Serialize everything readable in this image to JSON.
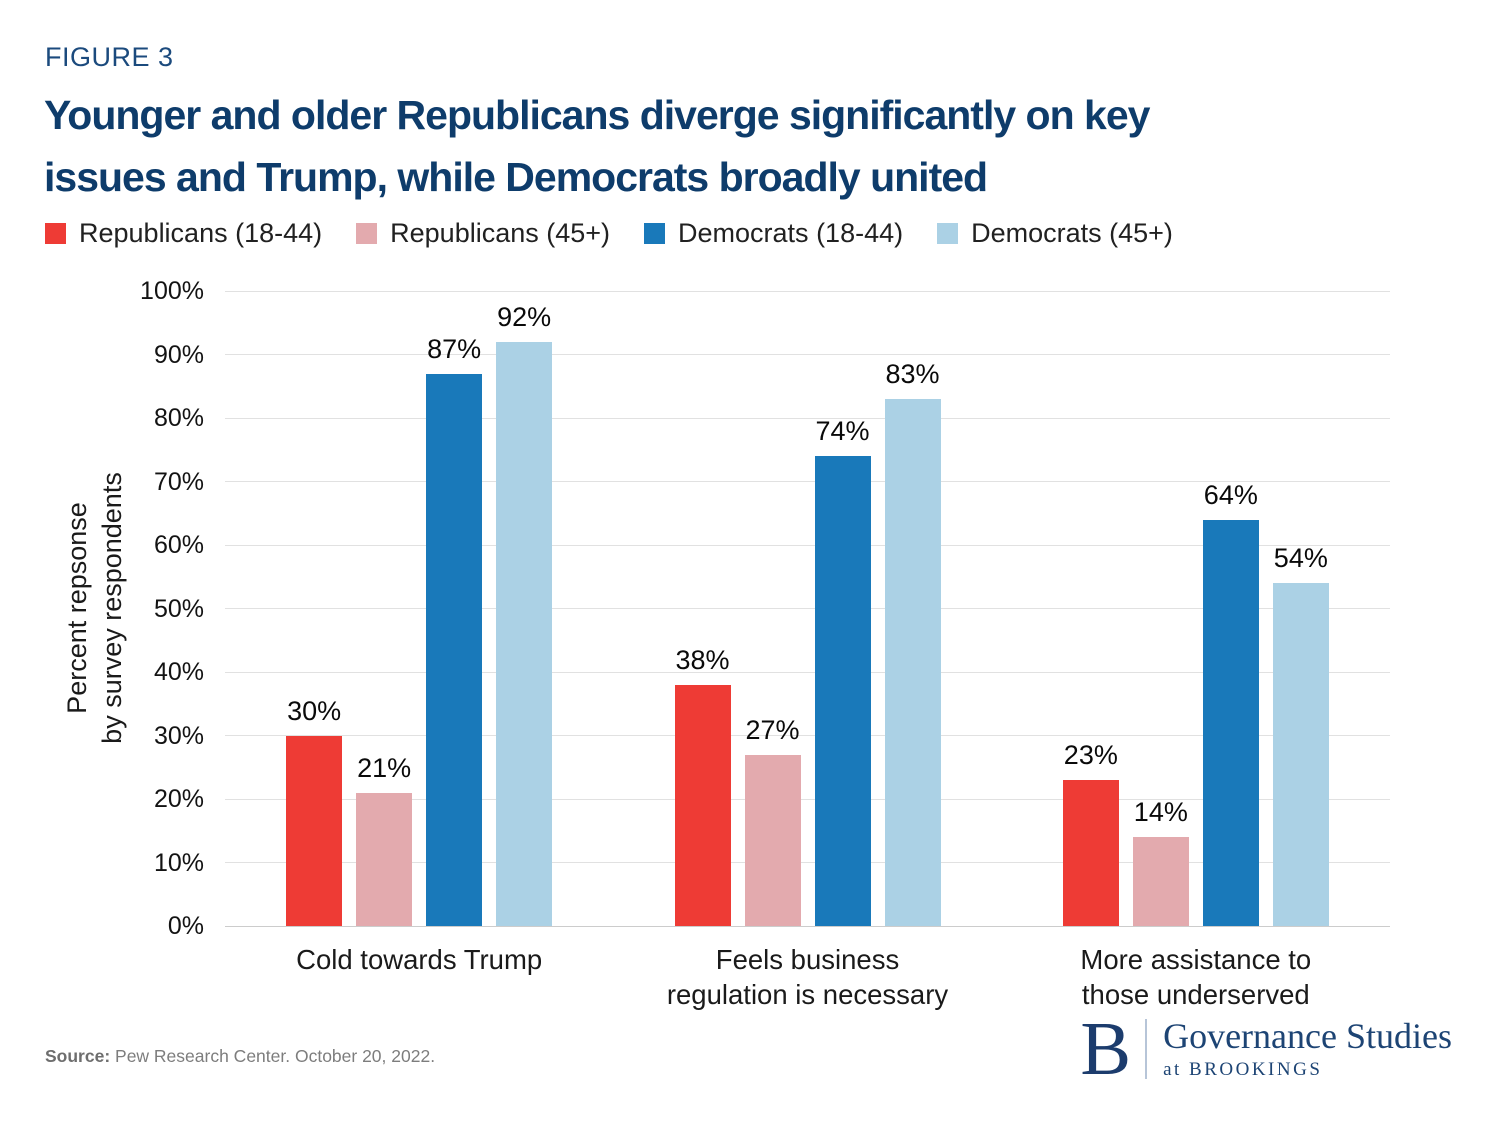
{
  "figure_label": "FIGURE 3",
  "title": {
    "line1": "Younger and older Republicans diverge significantly on key",
    "line2": "issues and Trump, while Democrats broadly united"
  },
  "chart_data": {
    "type": "bar",
    "title": "Younger and older Republicans diverge significantly on key issues and Trump, while Democrats broadly united",
    "categories": [
      [
        "Cold towards Trump"
      ],
      [
        "Feels business",
        "regulation is necessary"
      ],
      [
        "More assistance to",
        "those underserved"
      ]
    ],
    "series": [
      {
        "name": "Republicans (18-44)",
        "color": "#ee3b35",
        "values": [
          30,
          38,
          23
        ]
      },
      {
        "name": "Republicans (45+)",
        "color": "#e3aaae",
        "values": [
          21,
          27,
          14
        ]
      },
      {
        "name": "Democrats (18-44)",
        "color": "#1979ba",
        "values": [
          87,
          74,
          64
        ]
      },
      {
        "name": "Democrats (45+)",
        "color": "#abd1e5",
        "values": [
          92,
          83,
          54
        ]
      }
    ],
    "ylabel_lines": [
      "Percent repsonse",
      "by survey respondents"
    ],
    "ylim": [
      0,
      100
    ],
    "ytick_step": 10,
    "ytick_suffix": "%",
    "value_suffix": "%",
    "grid": true,
    "legend_position": "top"
  },
  "source": {
    "label": "Source:",
    "text": " Pew Research Center. October 20, 2022."
  },
  "logo": {
    "b": "B",
    "name": "Governance Studies",
    "sub": "at BROOKINGS"
  }
}
